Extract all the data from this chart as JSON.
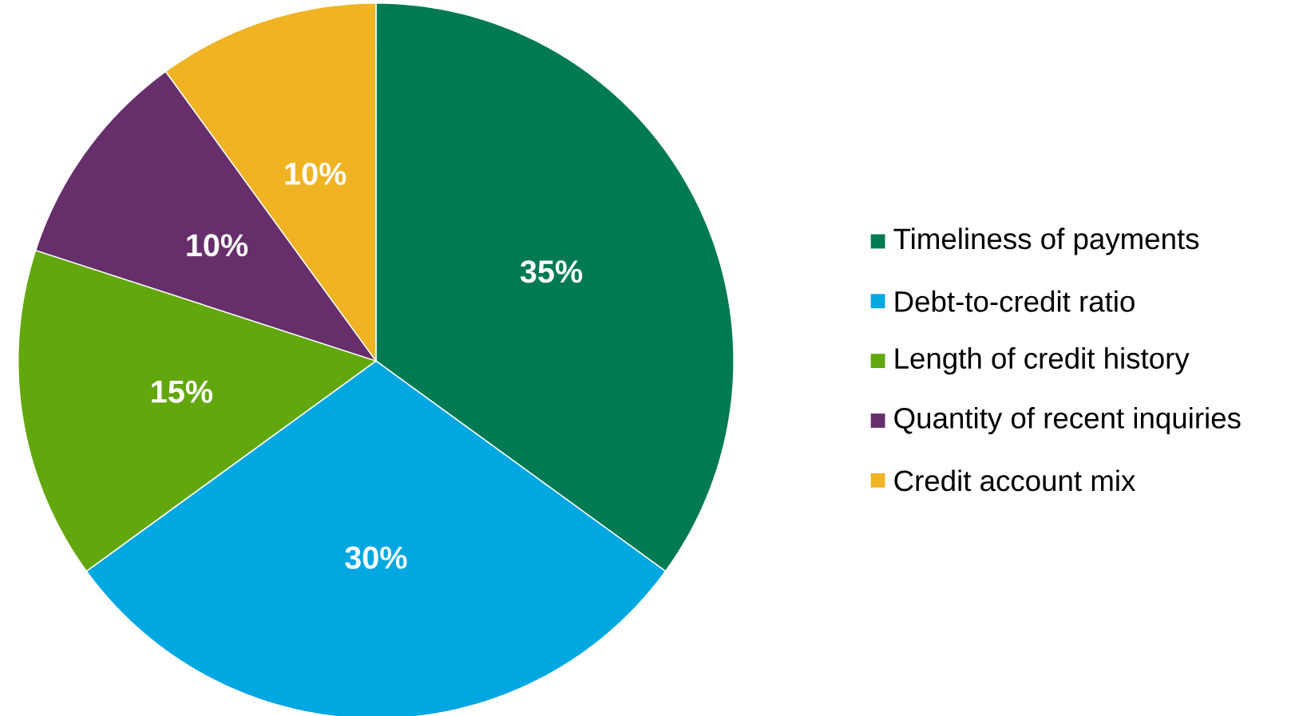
{
  "chart_data": {
    "type": "pie",
    "categories": [
      "Timeliness of payments",
      "Debt-to-credit ratio",
      "Length of credit history",
      "Quantity of recent inquiries",
      "Credit account mix"
    ],
    "values": [
      35,
      30,
      15,
      10,
      10
    ],
    "value_labels": [
      "35%",
      "30%",
      "15%",
      "10%",
      "10%"
    ],
    "colors": [
      "#007a53",
      "#00a7e1",
      "#63a70e",
      "#662f6b",
      "#f0b323"
    ],
    "legend": "right"
  }
}
